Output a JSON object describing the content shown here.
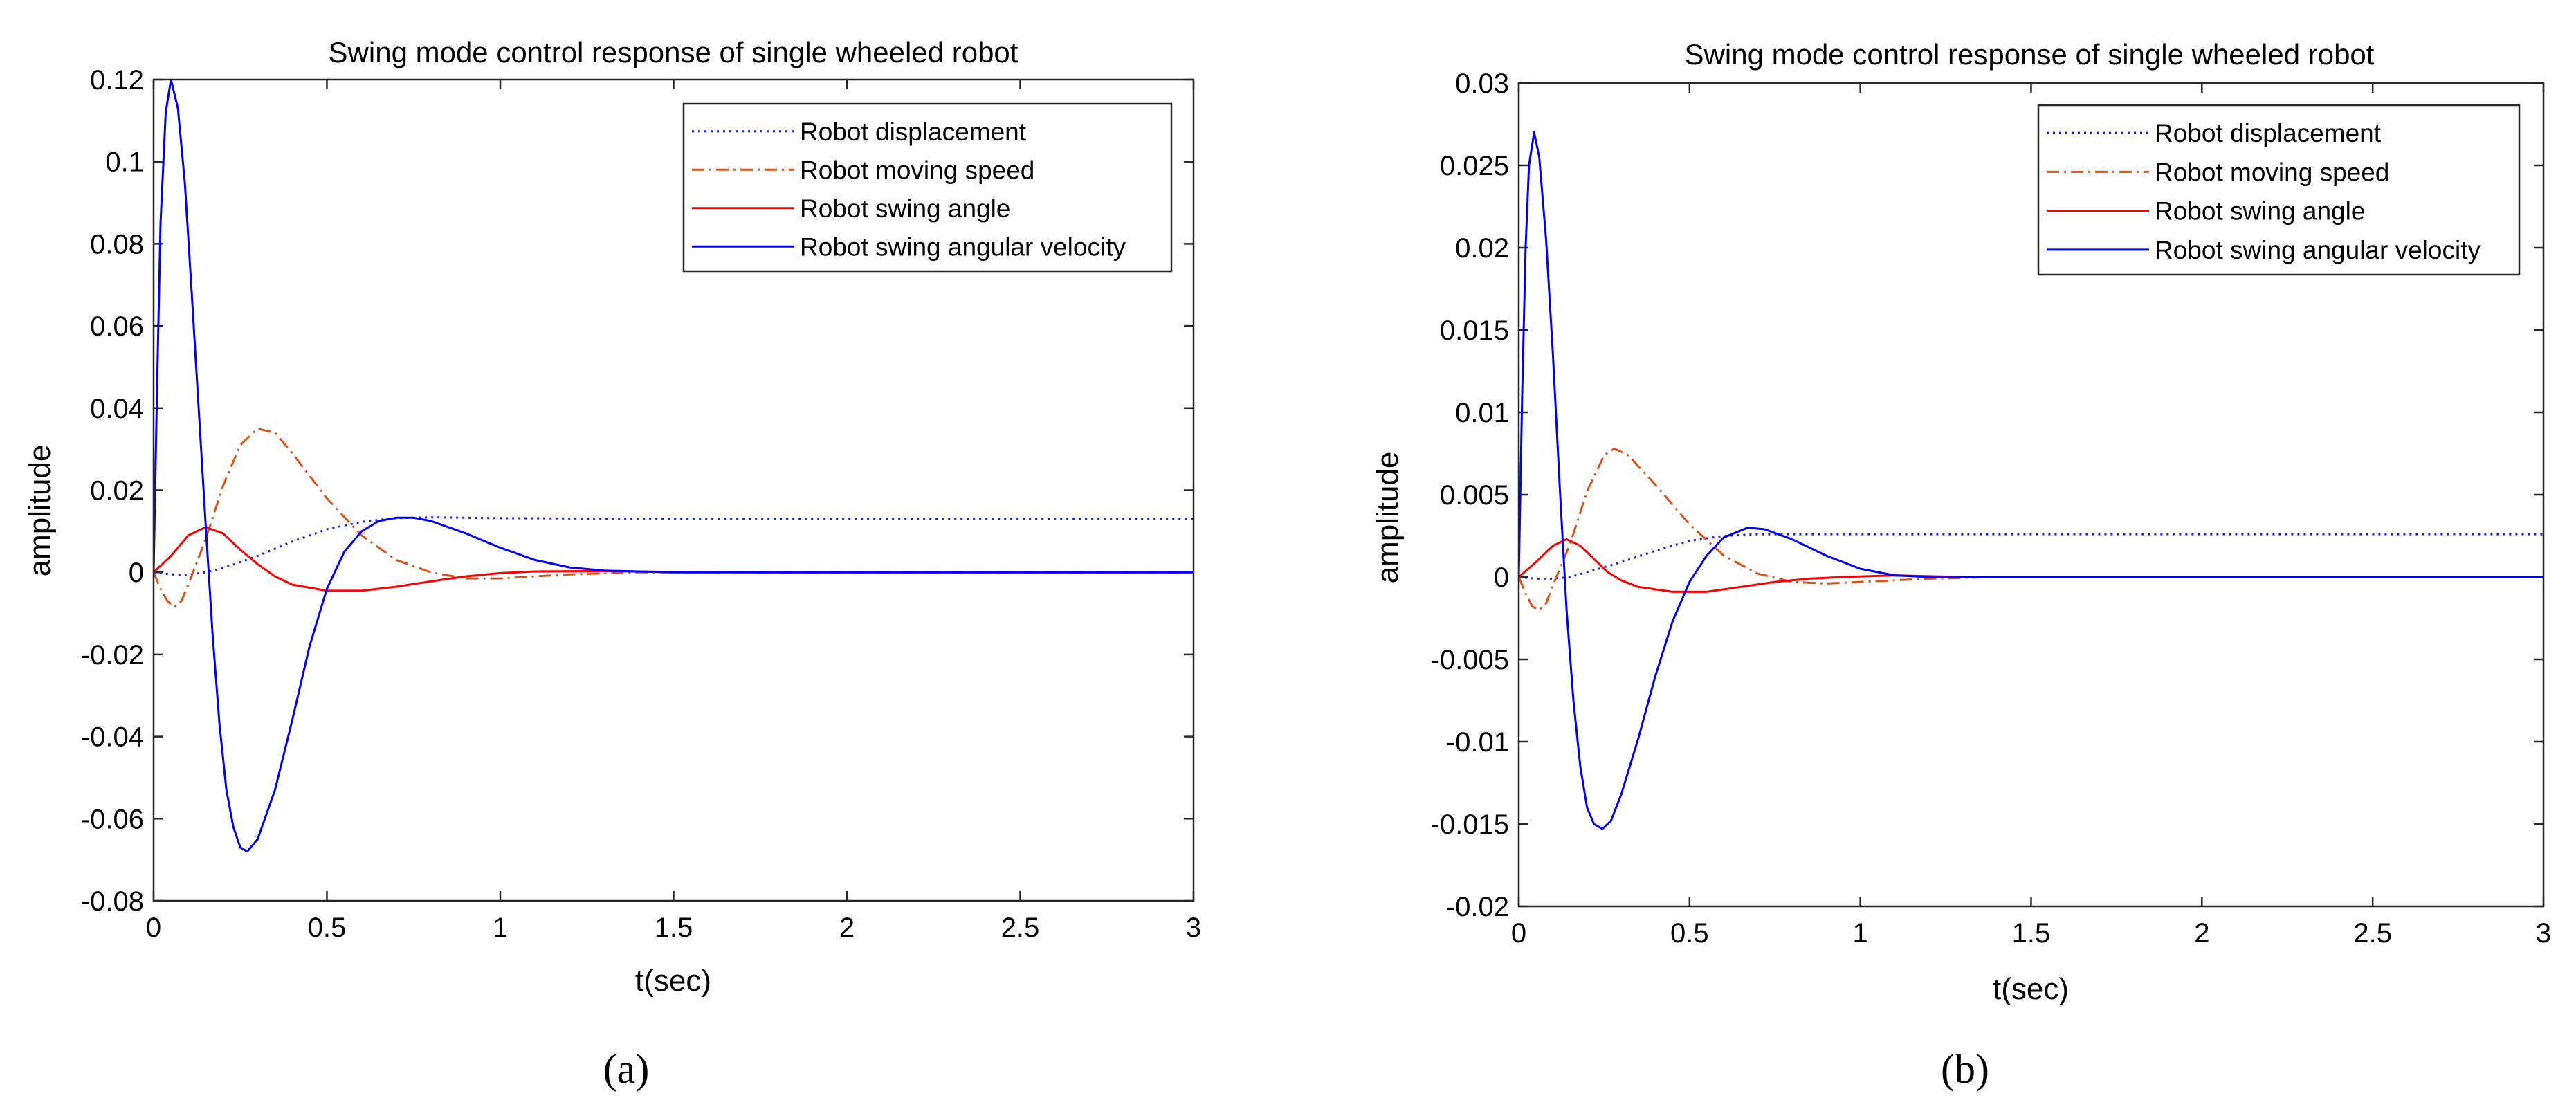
{
  "chart_data": [
    {
      "type": "line",
      "panel": "a",
      "caption": "(a)",
      "title": "Swing mode control response of single wheeled robot",
      "xlabel": "t(sec)",
      "ylabel": "amplitude",
      "xlim": [
        0,
        3
      ],
      "ylim": [
        -0.08,
        0.12
      ],
      "xticks": [
        0,
        0.5,
        1,
        1.5,
        2,
        2.5,
        3
      ],
      "xtick_labels": [
        "0",
        "0.5",
        "1",
        "1.5",
        "2",
        "2.5",
        "3"
      ],
      "yticks": [
        -0.08,
        -0.06,
        -0.04,
        -0.02,
        0,
        0.02,
        0.04,
        0.06,
        0.08,
        0.1,
        0.12
      ],
      "ytick_labels": [
        "-0.08",
        "-0.06",
        "-0.04",
        "-0.02",
        "0",
        "0.02",
        "0.04",
        "0.06",
        "0.08",
        "0.1",
        "0.12"
      ],
      "legend_position": "top-right",
      "series": [
        {
          "name": "Robot displacement",
          "color": "#1f1fd6",
          "style": "dotted",
          "points": [
            [
              0,
              0
            ],
            [
              0.05,
              -0.0005
            ],
            [
              0.1,
              -0.0006
            ],
            [
              0.15,
              0
            ],
            [
              0.2,
              0.001
            ],
            [
              0.3,
              0.004
            ],
            [
              0.4,
              0.0075
            ],
            [
              0.5,
              0.0105
            ],
            [
              0.6,
              0.0123
            ],
            [
              0.7,
              0.0132
            ],
            [
              0.8,
              0.0134
            ],
            [
              0.9,
              0.0133
            ],
            [
              1.0,
              0.0132
            ],
            [
              1.5,
              0.013
            ],
            [
              2.0,
              0.013
            ],
            [
              3.0,
              0.013
            ]
          ]
        },
        {
          "name": "Robot moving speed",
          "color": "#d95319",
          "style": "dashdot",
          "points": [
            [
              0,
              0
            ],
            [
              0.02,
              -0.004
            ],
            [
              0.04,
              -0.007
            ],
            [
              0.06,
              -0.0085
            ],
            [
              0.08,
              -0.007
            ],
            [
              0.1,
              -0.003
            ],
            [
              0.15,
              0.008
            ],
            [
              0.2,
              0.021
            ],
            [
              0.25,
              0.031
            ],
            [
              0.3,
              0.035
            ],
            [
              0.35,
              0.034
            ],
            [
              0.4,
              0.029
            ],
            [
              0.5,
              0.018
            ],
            [
              0.6,
              0.009
            ],
            [
              0.7,
              0.003
            ],
            [
              0.8,
              0
            ],
            [
              0.9,
              -0.0015
            ],
            [
              1.0,
              -0.0015
            ],
            [
              1.1,
              -0.001
            ],
            [
              1.2,
              -0.0005
            ],
            [
              1.4,
              0
            ],
            [
              3.0,
              0
            ]
          ]
        },
        {
          "name": "Robot swing angle",
          "color": "#ff0000",
          "style": "solid",
          "points": [
            [
              0,
              0
            ],
            [
              0.05,
              0.004
            ],
            [
              0.1,
              0.009
            ],
            [
              0.15,
              0.011
            ],
            [
              0.2,
              0.0095
            ],
            [
              0.25,
              0.0055
            ],
            [
              0.3,
              0.002
            ],
            [
              0.35,
              -0.001
            ],
            [
              0.4,
              -0.003
            ],
            [
              0.5,
              -0.0045
            ],
            [
              0.6,
              -0.0045
            ],
            [
              0.7,
              -0.0035
            ],
            [
              0.8,
              -0.0022
            ],
            [
              0.9,
              -0.001
            ],
            [
              1.0,
              -0.0002
            ],
            [
              1.1,
              0.0002
            ],
            [
              1.3,
              0.0003
            ],
            [
              1.5,
              0.0001
            ],
            [
              1.8,
              0
            ],
            [
              3.0,
              0
            ]
          ]
        },
        {
          "name": "Robot swing angular velocity",
          "color": "#0000ff",
          "style": "solid",
          "points": [
            [
              0,
              0
            ],
            [
              0.01,
              0.045
            ],
            [
              0.02,
              0.085
            ],
            [
              0.035,
              0.112
            ],
            [
              0.05,
              0.12
            ],
            [
              0.07,
              0.113
            ],
            [
              0.09,
              0.095
            ],
            [
              0.11,
              0.068
            ],
            [
              0.13,
              0.04
            ],
            [
              0.15,
              0.012
            ],
            [
              0.17,
              -0.015
            ],
            [
              0.19,
              -0.037
            ],
            [
              0.21,
              -0.053
            ],
            [
              0.23,
              -0.062
            ],
            [
              0.25,
              -0.067
            ],
            [
              0.27,
              -0.068
            ],
            [
              0.3,
              -0.065
            ],
            [
              0.35,
              -0.053
            ],
            [
              0.4,
              -0.036
            ],
            [
              0.45,
              -0.018
            ],
            [
              0.5,
              -0.004
            ],
            [
              0.55,
              0.005
            ],
            [
              0.6,
              0.01
            ],
            [
              0.65,
              0.0125
            ],
            [
              0.7,
              0.0133
            ],
            [
              0.75,
              0.0133
            ],
            [
              0.8,
              0.0125
            ],
            [
              0.9,
              0.0095
            ],
            [
              1.0,
              0.006
            ],
            [
              1.1,
              0.003
            ],
            [
              1.2,
              0.0012
            ],
            [
              1.3,
              0.0004
            ],
            [
              1.5,
              0
            ],
            [
              3.0,
              0
            ]
          ]
        }
      ]
    },
    {
      "type": "line",
      "panel": "b",
      "caption": "(b)",
      "title": "Swing mode control response of single wheeled robot",
      "xlabel": "t(sec)",
      "ylabel": "amplitude",
      "xlim": [
        0,
        3
      ],
      "ylim": [
        -0.02,
        0.03
      ],
      "xticks": [
        0,
        0.5,
        1,
        1.5,
        2,
        2.5,
        3
      ],
      "xtick_labels": [
        "0",
        "0.5",
        "1",
        "1.5",
        "2",
        "2.5",
        "3"
      ],
      "yticks": [
        -0.02,
        -0.015,
        -0.01,
        -0.005,
        0,
        0.005,
        0.01,
        0.015,
        0.02,
        0.025,
        0.03
      ],
      "ytick_labels": [
        "-0.02",
        "-0.015",
        "-0.01",
        "-0.005",
        "0",
        "0.005",
        "0.01",
        "0.015",
        "0.02",
        "0.025",
        "0.03"
      ],
      "legend_position": "top-right",
      "series": [
        {
          "name": "Robot displacement",
          "color": "#1f1fd6",
          "style": "dotted",
          "points": [
            [
              0,
              0
            ],
            [
              0.05,
              -0.0001
            ],
            [
              0.1,
              -0.0001
            ],
            [
              0.15,
              0
            ],
            [
              0.2,
              0.0003
            ],
            [
              0.3,
              0.0009
            ],
            [
              0.4,
              0.0016
            ],
            [
              0.5,
              0.0022
            ],
            [
              0.6,
              0.0025
            ],
            [
              0.7,
              0.0026
            ],
            [
              0.8,
              0.0026
            ],
            [
              1.0,
              0.0026
            ],
            [
              1.5,
              0.0026
            ],
            [
              2.0,
              0.0026
            ],
            [
              3.0,
              0.0026
            ]
          ]
        },
        {
          "name": "Robot moving speed",
          "color": "#d95319",
          "style": "dashdot",
          "points": [
            [
              0,
              0
            ],
            [
              0.02,
              -0.001
            ],
            [
              0.04,
              -0.0018
            ],
            [
              0.06,
              -0.002
            ],
            [
              0.08,
              -0.0016
            ],
            [
              0.1,
              -0.0005
            ],
            [
              0.15,
              0.002
            ],
            [
              0.2,
              0.0052
            ],
            [
              0.25,
              0.0074
            ],
            [
              0.28,
              0.0078
            ],
            [
              0.32,
              0.0074
            ],
            [
              0.4,
              0.0056
            ],
            [
              0.5,
              0.0032
            ],
            [
              0.6,
              0.0013
            ],
            [
              0.7,
              0.0002
            ],
            [
              0.8,
              -0.0003
            ],
            [
              0.9,
              -0.0004
            ],
            [
              1.0,
              -0.0003
            ],
            [
              1.2,
              -0.0001
            ],
            [
              1.4,
              0
            ],
            [
              3.0,
              0
            ]
          ]
        },
        {
          "name": "Robot swing angle",
          "color": "#ff0000",
          "style": "solid",
          "points": [
            [
              0,
              0
            ],
            [
              0.05,
              0.0009
            ],
            [
              0.1,
              0.0019
            ],
            [
              0.14,
              0.0023
            ],
            [
              0.18,
              0.0019
            ],
            [
              0.22,
              0.0011
            ],
            [
              0.26,
              0.0003
            ],
            [
              0.3,
              -0.0002
            ],
            [
              0.35,
              -0.0006
            ],
            [
              0.45,
              -0.0009
            ],
            [
              0.55,
              -0.0009
            ],
            [
              0.65,
              -0.0006
            ],
            [
              0.75,
              -0.0003
            ],
            [
              0.85,
              -0.0001
            ],
            [
              0.95,
              0
            ],
            [
              1.1,
              0.0001
            ],
            [
              1.3,
              0
            ],
            [
              3.0,
              0
            ]
          ]
        },
        {
          "name": "Robot swing angular velocity",
          "color": "#0000ff",
          "style": "solid",
          "points": [
            [
              0,
              0
            ],
            [
              0.01,
              0.011
            ],
            [
              0.02,
              0.02
            ],
            [
              0.03,
              0.025
            ],
            [
              0.045,
              0.027
            ],
            [
              0.06,
              0.0255
            ],
            [
              0.08,
              0.0205
            ],
            [
              0.1,
              0.0135
            ],
            [
              0.12,
              0.0055
            ],
            [
              0.14,
              -0.002
            ],
            [
              0.16,
              -0.0075
            ],
            [
              0.18,
              -0.0115
            ],
            [
              0.2,
              -0.014
            ],
            [
              0.22,
              -0.015
            ],
            [
              0.245,
              -0.0153
            ],
            [
              0.27,
              -0.0148
            ],
            [
              0.3,
              -0.0132
            ],
            [
              0.35,
              -0.0098
            ],
            [
              0.4,
              -0.006
            ],
            [
              0.45,
              -0.0027
            ],
            [
              0.5,
              -0.0003
            ],
            [
              0.55,
              0.0013
            ],
            [
              0.6,
              0.0024
            ],
            [
              0.67,
              0.003
            ],
            [
              0.72,
              0.0029
            ],
            [
              0.8,
              0.0023
            ],
            [
              0.9,
              0.0013
            ],
            [
              1.0,
              0.0005
            ],
            [
              1.1,
              0.0001
            ],
            [
              1.2,
              0
            ],
            [
              3.0,
              0
            ]
          ]
        }
      ]
    }
  ]
}
